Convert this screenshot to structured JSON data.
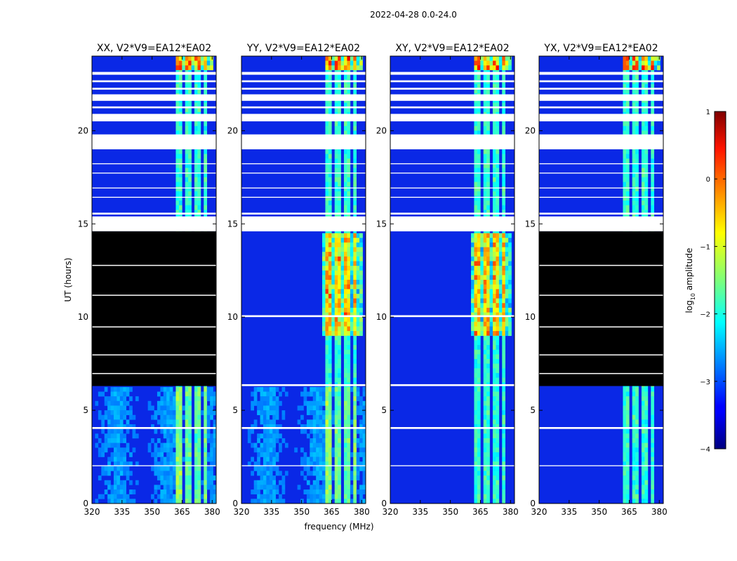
{
  "figure": {
    "suptitle": "2022-04-28 0.0-24.0"
  },
  "chart_data": {
    "type": "heatmap",
    "xlabel": "frequency (MHz)",
    "ylabel": "UT (hours)",
    "xlim": [
      320,
      382
    ],
    "ylim": [
      0,
      24
    ],
    "xticks": [
      "320",
      "335",
      "350",
      "365",
      "380"
    ],
    "yticks": [
      "0",
      "5",
      "10",
      "15",
      "20"
    ],
    "panels": [
      {
        "title": "XX, V2*V9=EA12*EA02",
        "flagged_hours": [
          [
            6.3,
            14.6
          ]
        ]
      },
      {
        "title": "YY, V2*V9=EA12*EA02",
        "flagged_hours": []
      },
      {
        "title": "XY, V2*V9=EA12*EA02",
        "flagged_hours": []
      },
      {
        "title": "YX, V2*V9=EA12*EA02",
        "flagged_hours": [
          [
            6.3,
            14.6
          ]
        ]
      }
    ],
    "colorbar": {
      "label_prefix": "log",
      "label_sub": "10",
      "label_suffix": " amplitude",
      "range": [
        -4,
        1
      ],
      "ticks": [
        "1",
        "0",
        "−1",
        "−2",
        "−3",
        "−4"
      ]
    }
  }
}
